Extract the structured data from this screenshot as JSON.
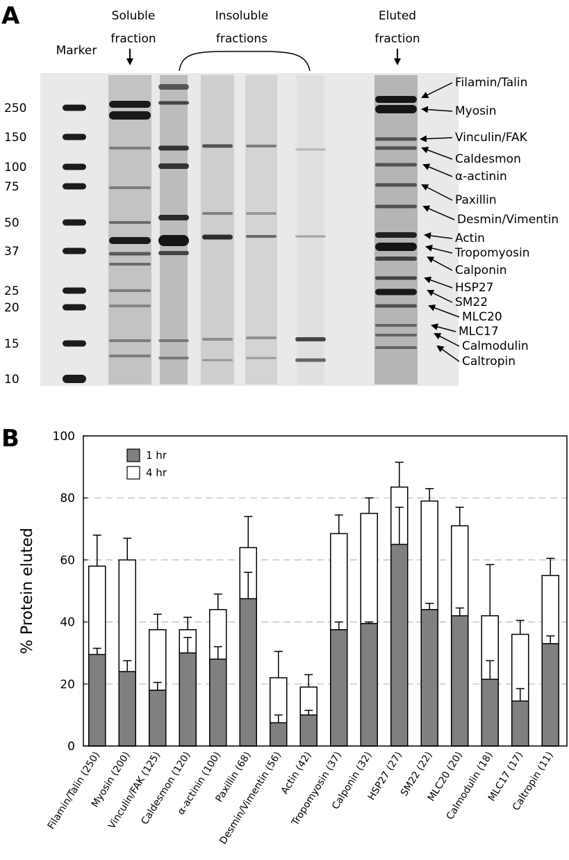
{
  "gel": {
    "panel_label": "A",
    "lane_labels": {
      "marker": "Marker",
      "soluble": [
        "Soluble",
        "fraction"
      ],
      "insoluble": [
        "Insoluble",
        "fractions"
      ],
      "eluted": [
        "Eluted",
        "fraction"
      ]
    },
    "marker_sizes": [
      "250",
      "150",
      "100",
      "75",
      "50",
      "37",
      "25",
      "20",
      "15",
      "10"
    ],
    "protein_labels": [
      "Filamin/Talin",
      "Myosin",
      "Vinculin/FAK",
      "Caldesmon",
      "α-actinin",
      "Paxillin",
      "Desmin/Vimentin",
      "Actin",
      "Tropomyosin",
      "Calponin",
      "HSP27",
      "SM22",
      "MLC20",
      "MLC17",
      "Calmodulin",
      "Caltropin"
    ]
  },
  "chart_data": {
    "type": "bar",
    "panel_label": "B",
    "y_label": "% Protein eluted",
    "categories": [
      "Filamin/Talin (250)",
      "Myosin (200)",
      "Vinculin/FAK (125)",
      "Caldesmon (120)",
      "α-actinin (100)",
      "Paxillin (68)",
      "Desmin/Vimentin (56)",
      "Actin (42)",
      "Tropomyosin (37)",
      "Calponin (32)",
      "HSP27 (27)",
      "SM22 (22)",
      "MLC20 (20)",
      "Calmodulin (18)",
      "MLC17 (17)",
      "Caltropin (11)"
    ],
    "series": [
      {
        "name": "1 hr",
        "color": "#808080",
        "values": [
          29.5,
          24,
          18,
          30,
          28,
          47.5,
          7.5,
          10,
          37.5,
          39.5,
          65,
          44,
          42,
          21.5,
          14.5,
          33
        ],
        "errors": [
          2,
          3.5,
          2.5,
          5,
          4,
          8.5,
          2.5,
          1.5,
          2.5,
          0.5,
          12,
          2,
          2.5,
          6,
          4,
          2.5
        ]
      },
      {
        "name": "4 hr",
        "color": "#ffffff",
        "values": [
          58,
          60,
          37.5,
          37.5,
          44,
          64,
          22,
          19,
          68.5,
          75,
          83.5,
          79,
          71,
          42,
          36,
          55
        ],
        "errors": [
          10,
          7,
          5,
          4,
          5,
          10,
          8.5,
          4,
          6,
          5,
          8,
          4,
          6,
          16.5,
          4.5,
          5.5
        ]
      }
    ],
    "ylim": [
      0,
      100
    ],
    "yticks": [
      0,
      20,
      40,
      60,
      80,
      100
    ],
    "grid": true,
    "legend": "top-left"
  }
}
